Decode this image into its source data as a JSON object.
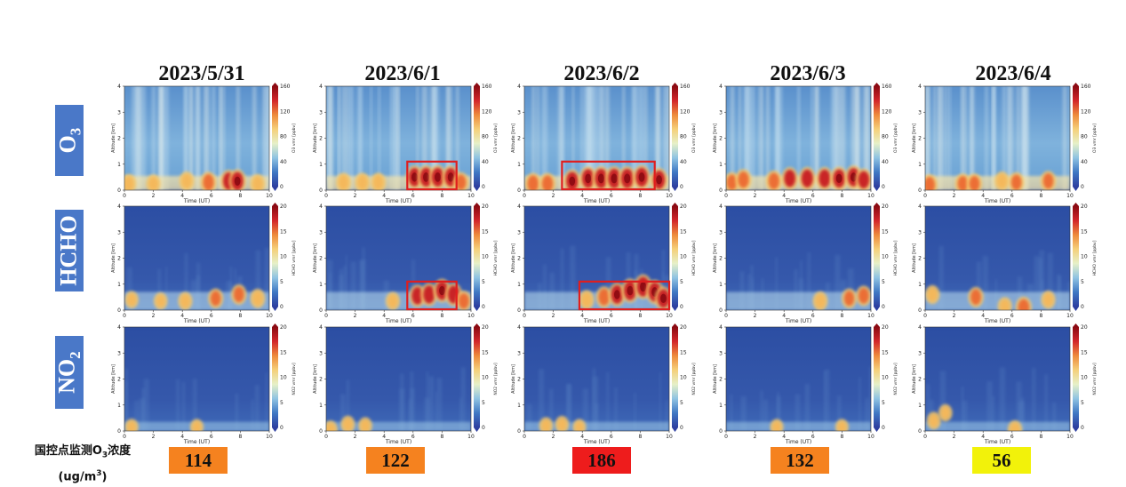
{
  "dates": [
    "2023/5/31",
    "2023/6/1",
    "2023/6/2",
    "2023/6/3",
    "2023/6/4"
  ],
  "rows": [
    {
      "label_main": "O",
      "label_sub": "3",
      "icon": "o3-row-label"
    },
    {
      "label_main": "HCHO",
      "label_sub": "",
      "icon": "hcho-row-label"
    },
    {
      "label_main": "NO",
      "label_sub": "2",
      "icon": "no2-row-label"
    }
  ],
  "footer": {
    "label_line1_pre": "国控点监测O",
    "label_line1_sub": "3",
    "label_line1_post": "浓度",
    "label_line2_pre": "(ug/m",
    "label_line2_sup": "3",
    "label_line2_post": ")",
    "values": [
      {
        "value": "114",
        "color": "#f5821f"
      },
      {
        "value": "122",
        "color": "#f5821f"
      },
      {
        "value": "186",
        "color": "#ee1c1c"
      },
      {
        "value": "132",
        "color": "#f5821f"
      },
      {
        "value": "56",
        "color": "#f2f20a"
      }
    ]
  },
  "chart_data": [
    {
      "type": "heatmap",
      "species": "O3",
      "xlabel": "Time (UT)",
      "ylabel": "Altitude [km]",
      "colorbar_label": "O3 vmr [ppbv]",
      "xlim": [
        0,
        10
      ],
      "ylim": [
        0,
        4
      ],
      "xticks": [
        0,
        2,
        4,
        6,
        8,
        10
      ],
      "yticks": [
        0,
        1,
        2,
        3,
        4
      ],
      "colorbar_range": [
        0,
        160
      ],
      "colorbar_ticks": [
        0,
        40,
        80,
        120,
        160
      ],
      "highlight_boxes": [
        {
          "date": "2023/6/1",
          "time_range": [
            5.6,
            9.0
          ],
          "altitude_range": [
            0.0,
            1.1
          ]
        },
        {
          "date": "2023/6/2",
          "time_range": [
            2.6,
            9.0
          ],
          "altitude_range": [
            0.0,
            1.1
          ]
        }
      ]
    },
    {
      "type": "heatmap",
      "species": "HCHO",
      "xlabel": "Time (UT)",
      "ylabel": "Altitude [km]",
      "colorbar_label": "HCHO vmr [ppbv]",
      "xlim": [
        0,
        10
      ],
      "ylim": [
        0,
        4
      ],
      "xticks": [
        0,
        2,
        4,
        6,
        8,
        10
      ],
      "yticks": [
        0,
        1,
        2,
        3,
        4
      ],
      "colorbar_range": [
        0,
        20
      ],
      "colorbar_ticks": [
        0,
        5,
        10,
        15,
        20
      ],
      "highlight_boxes": [
        {
          "date": "2023/6/1",
          "time_range": [
            5.6,
            9.0
          ],
          "altitude_range": [
            0.0,
            1.1
          ]
        },
        {
          "date": "2023/6/2",
          "time_range": [
            3.8,
            10.0
          ],
          "altitude_range": [
            0.0,
            1.1
          ]
        }
      ]
    },
    {
      "type": "heatmap",
      "species": "NO2",
      "xlabel": "Time (UT)",
      "ylabel": "Altitude [km]",
      "colorbar_label": "NO2 vmr [ppbv]",
      "xlim": [
        0,
        10
      ],
      "ylim": [
        0,
        4
      ],
      "xticks": [
        0,
        2,
        4,
        6,
        8,
        10
      ],
      "yticks": [
        0,
        1,
        2,
        3,
        4
      ],
      "colorbar_range": [
        0,
        20
      ],
      "colorbar_ticks": [
        0,
        5,
        10,
        15,
        20
      ],
      "highlight_boxes": []
    }
  ],
  "palette": {
    "box_outline": "#e01e1e",
    "row_label_bg": "#4a78c8"
  }
}
